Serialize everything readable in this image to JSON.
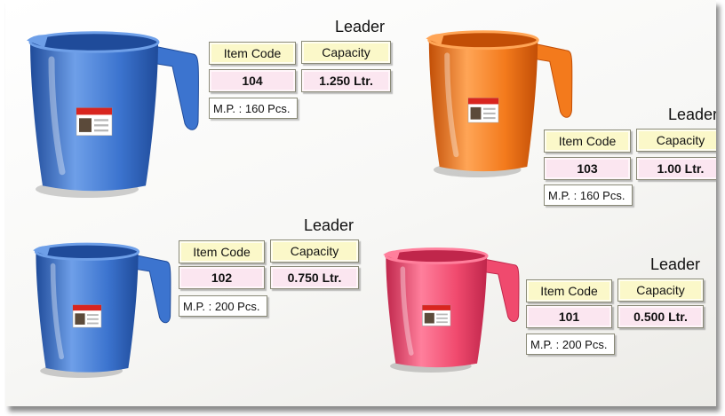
{
  "products": [
    {
      "title": "Leader",
      "code_header": "Item Code",
      "capacity_header": "Capacity",
      "code": "104",
      "capacity": "1.250 Ltr.",
      "mp": "M.P. : 160 Pcs.",
      "color": "#3c74cf",
      "color_dark": "#1f4b9a",
      "color_light": "#6e9fe8"
    },
    {
      "title": "Leader",
      "code_header": "Item Code",
      "capacity_header": "Capacity",
      "code": "103",
      "capacity": "1.00 Ltr.",
      "mp": "M.P. : 160 Pcs.",
      "color": "#f37a1c",
      "color_dark": "#c24e06",
      "color_light": "#ffa556"
    },
    {
      "title": "Leader",
      "code_header": "Item Code",
      "capacity_header": "Capacity",
      "code": "102",
      "capacity": "0.750 Ltr.",
      "mp": "M.P. : 200 Pcs.",
      "color": "#3c74cf",
      "color_dark": "#1f4b9a",
      "color_light": "#6e9fe8"
    },
    {
      "title": "Leader",
      "code_header": "Item Code",
      "capacity_header": "Capacity",
      "code": "101",
      "capacity": "0.500 Ltr.",
      "mp": "M.P. : 200 Pcs.",
      "color": "#f04a6e",
      "color_dark": "#c0264b",
      "color_light": "#ff7f9c"
    }
  ]
}
